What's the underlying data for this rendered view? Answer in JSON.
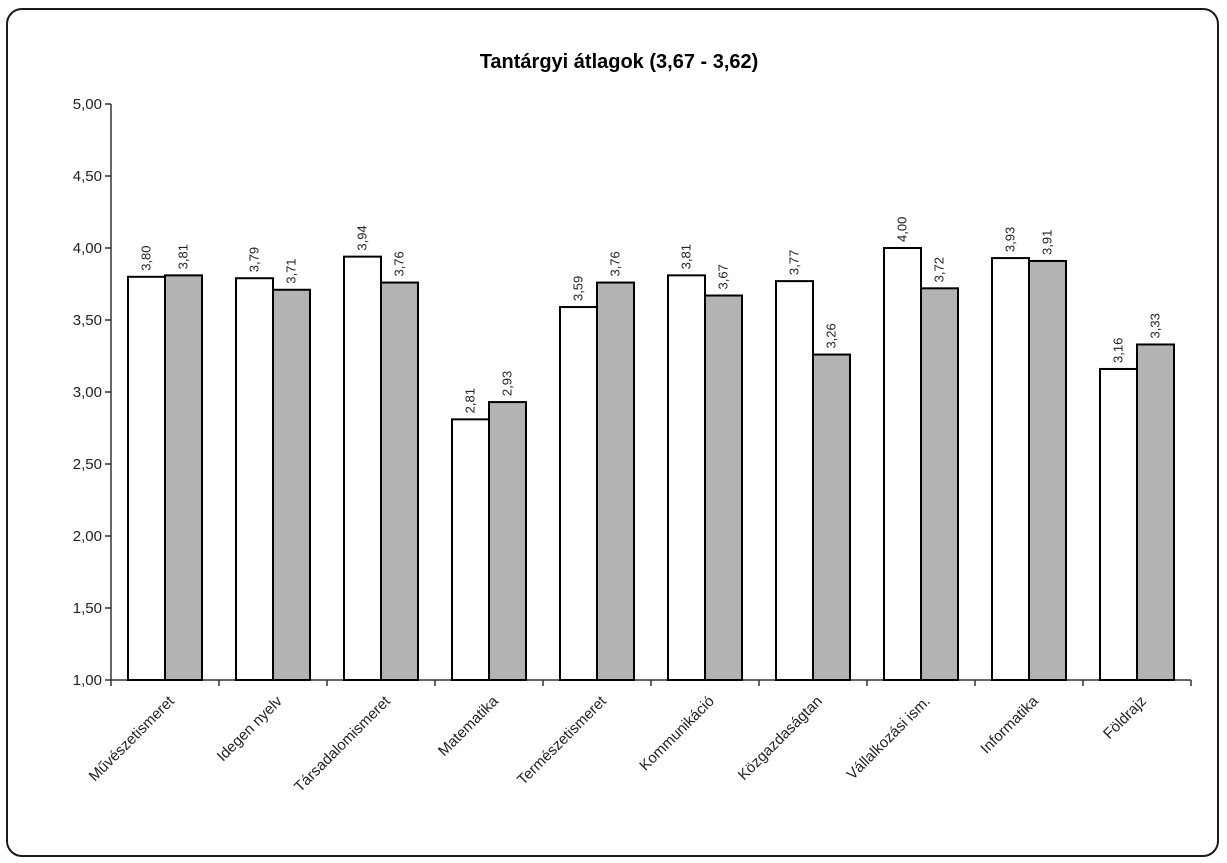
{
  "chart_data": {
    "type": "bar",
    "title": "Tantárgyi átlagok (3,67 - 3,62)",
    "xlabel": "",
    "ylabel": "",
    "ylim": [
      1.0,
      5.0
    ],
    "yticks": [
      "1,00",
      "1,50",
      "2,00",
      "2,50",
      "3,00",
      "3,50",
      "4,00",
      "4,50",
      "5,00"
    ],
    "grid": false,
    "legend": "none",
    "categories": [
      "Művészetismeret",
      "Idegen nyelv",
      "Társadalomismeret",
      "Matematika",
      "Természetismeret",
      "Kommunikáció",
      "Közgazdaságtan",
      "Vállalkozási ism.",
      "Informatika",
      "Földrajz"
    ],
    "series": [
      {
        "color": "#ffffff",
        "values": [
          3.8,
          3.79,
          3.94,
          2.81,
          3.59,
          3.81,
          3.77,
          4.0,
          3.93,
          3.16
        ],
        "labels": [
          "3,80",
          "3,79",
          "3,94",
          "2,81",
          "3,59",
          "3,81",
          "3,77",
          "4,00",
          "3,93",
          "3,16"
        ]
      },
      {
        "color": "#b3b3b3",
        "values": [
          3.81,
          3.71,
          3.76,
          2.93,
          3.76,
          3.67,
          3.26,
          3.72,
          3.91,
          3.33
        ],
        "labels": [
          "3,81",
          "3,71",
          "3,76",
          "2,93",
          "3,76",
          "3,67",
          "3,26",
          "3,72",
          "3,91",
          "3,33"
        ]
      }
    ]
  }
}
